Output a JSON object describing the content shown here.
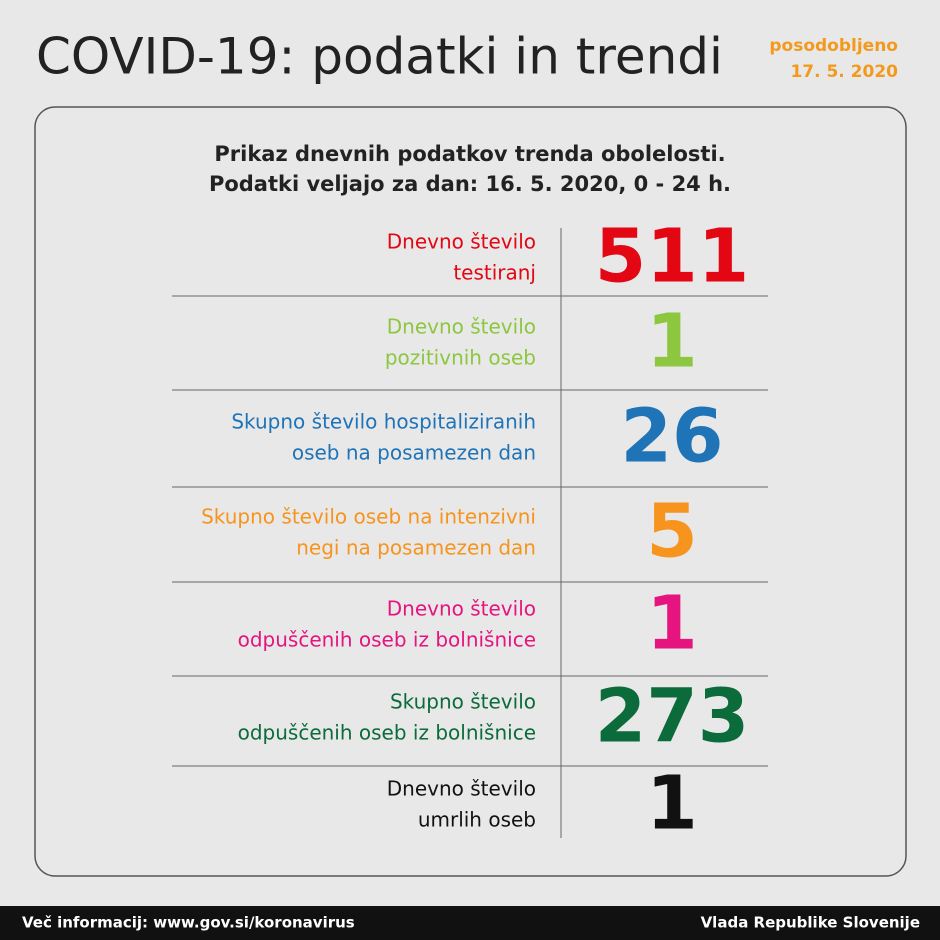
{
  "header": {
    "title": "COVID-19: podatki in trendi",
    "updated_label": "posodobljeno",
    "updated_date": "17. 5. 2020"
  },
  "panel": {
    "subtitle": [
      "Prikaz dnevnih podatkov trenda obolelosti.",
      "Podatki veljajo za dan: 16. 5. 2020, 0 - 24 h."
    ],
    "rows": [
      {
        "label": [
          "Dnevno število",
          "testiranj"
        ],
        "value": 511,
        "color": "#e30613"
      },
      {
        "label": [
          "Dnevno število",
          "pozitivnih oseb"
        ],
        "value": 1,
        "color": "#8dc63f"
      },
      {
        "label": [
          "Skupno število hospitaliziranih",
          "oseb na posamezen dan"
        ],
        "value": 26,
        "color": "#1f73b7"
      },
      {
        "label": [
          "Skupno število oseb na intenzivni",
          "negi na posamezen dan"
        ],
        "value": 5,
        "color": "#f7941d"
      },
      {
        "label": [
          "Dnevno število",
          "odpuščenih oseb iz bolnišnice"
        ],
        "value": 1,
        "color": "#e5147f"
      },
      {
        "label": [
          "Skupno število",
          "odpuščenih oseb iz bolnišnice"
        ],
        "value": 273,
        "color": "#0b6b3a"
      },
      {
        "label": [
          "Dnevno število",
          "umrlih oseb"
        ],
        "value": 1,
        "color": "#111111"
      }
    ]
  },
  "footer": {
    "left": "Več informacij: www.gov.si/koronavirus",
    "right": "Vlada Republike Slovenije"
  }
}
